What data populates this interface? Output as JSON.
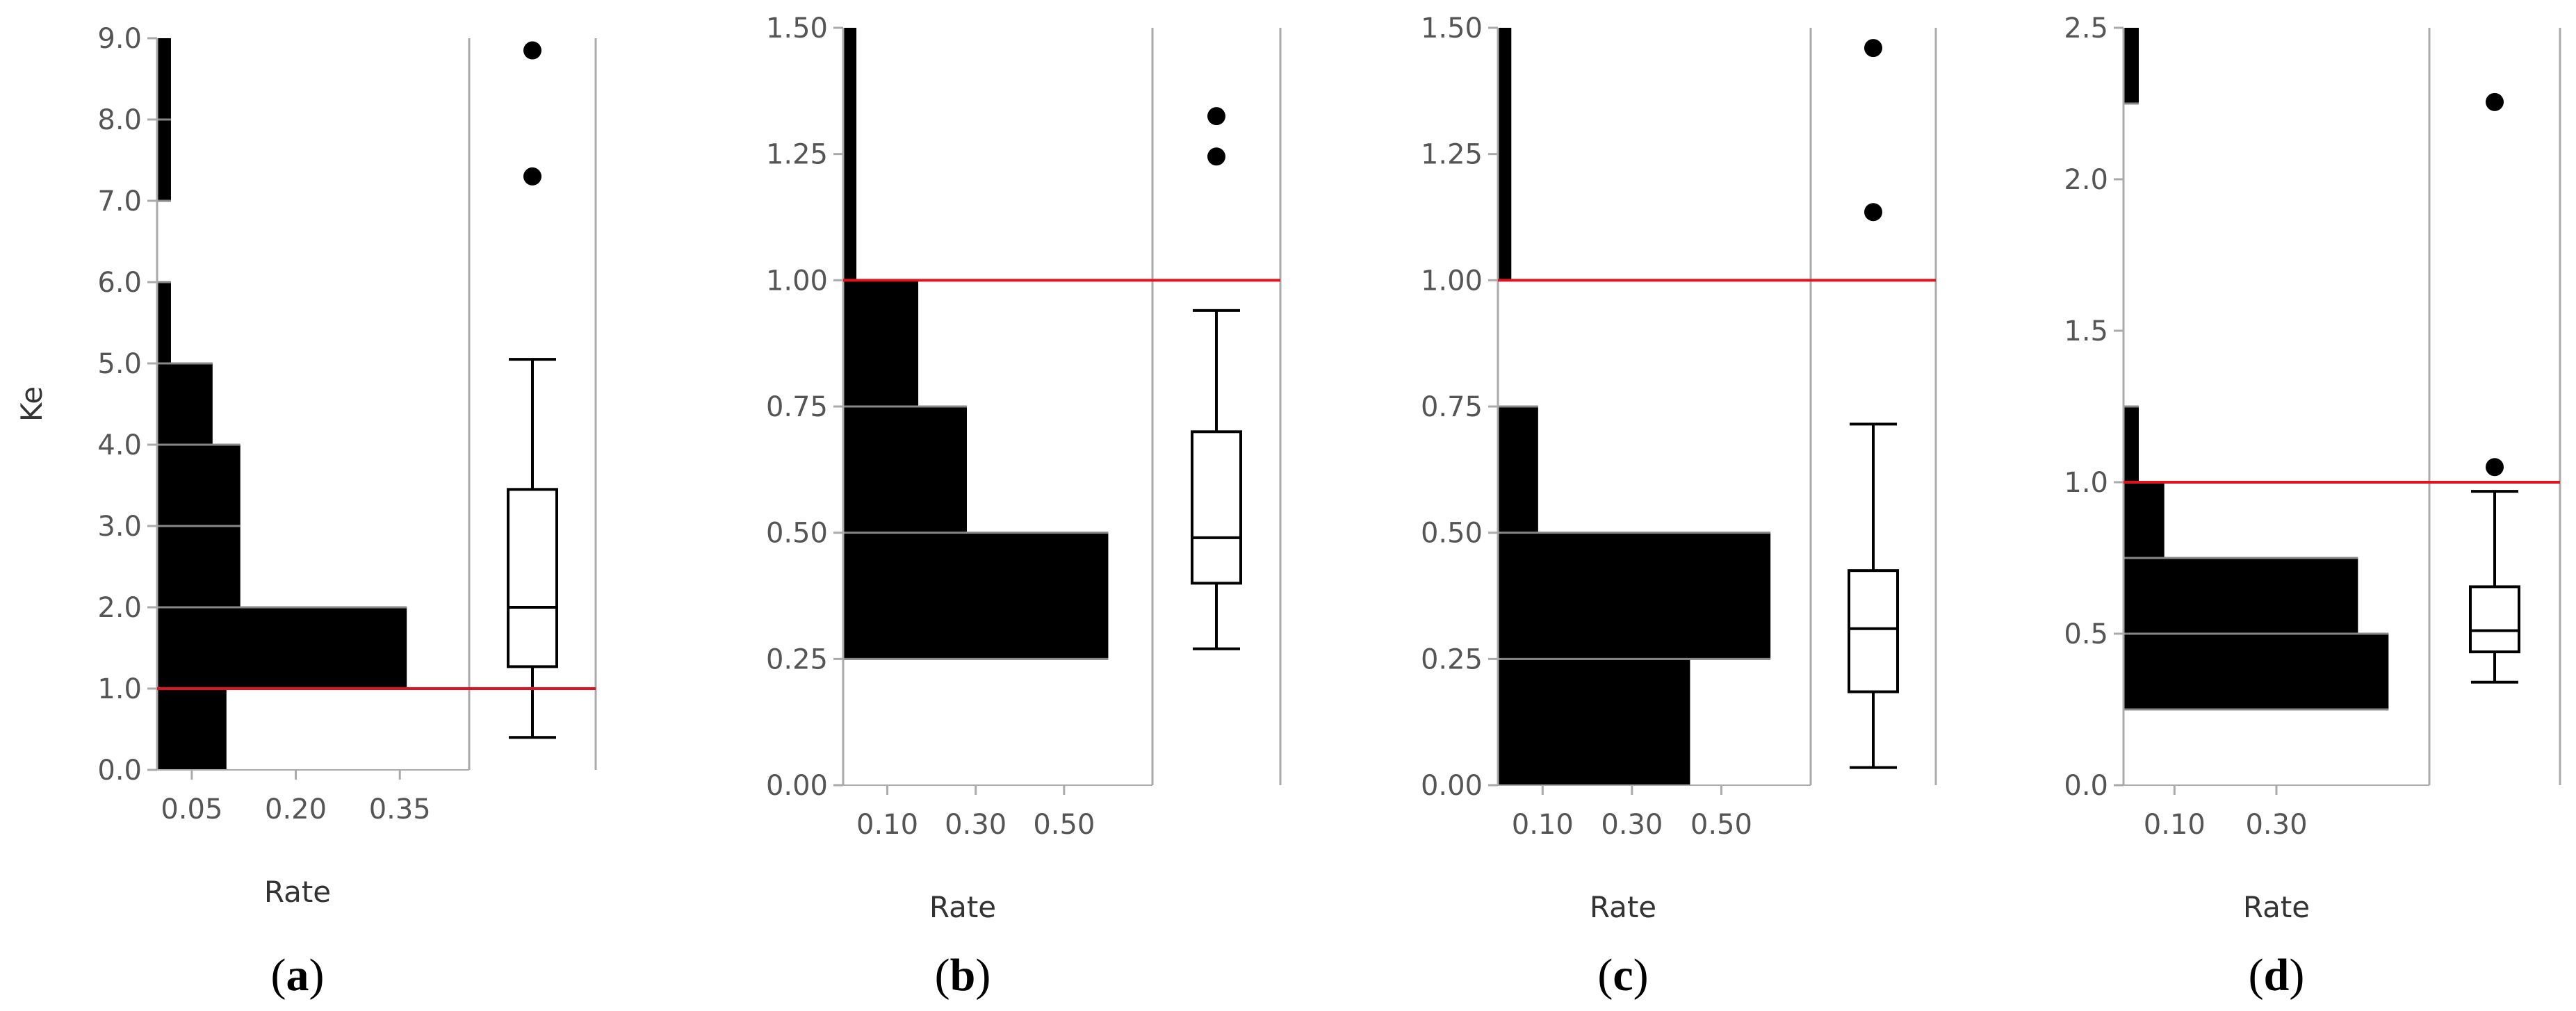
{
  "chart_data": [
    {
      "type": "histogram",
      "panel_label": "a",
      "ylabel": "Ke",
      "xlabel": "Rate",
      "ylim": [
        0,
        9
      ],
      "y_ticks": [
        "0.0",
        "1.0",
        "2.0",
        "3.0",
        "4.0",
        "5.0",
        "6.0",
        "7.0",
        "8.0",
        "9.0"
      ],
      "x_tick_labels": [
        "0.05",
        "0.20",
        "0.35"
      ],
      "rate_max": 0.45,
      "x_tick_values": [
        0.05,
        0.2,
        0.35
      ],
      "reference_line": 1.0,
      "bins": [
        {
          "y0": 0,
          "y1": 1,
          "rate": 0.1
        },
        {
          "y0": 1,
          "y1": 2,
          "rate": 0.36
        },
        {
          "y0": 2,
          "y1": 3,
          "rate": 0.12
        },
        {
          "y0": 3,
          "y1": 4,
          "rate": 0.12
        },
        {
          "y0": 4,
          "y1": 5,
          "rate": 0.08
        },
        {
          "y0": 5,
          "y1": 6,
          "rate": 0.02
        },
        {
          "y0": 6,
          "y1": 7,
          "rate": 0.0
        },
        {
          "y0": 7,
          "y1": 8,
          "rate": 0.02
        },
        {
          "y0": 8,
          "y1": 9,
          "rate": 0.02
        }
      ],
      "boxplot": {
        "whisker_low": 0.4,
        "q1": 1.27,
        "median": 2.0,
        "q3": 3.45,
        "whisker_high": 5.05,
        "outliers": [
          7.3,
          8.85
        ]
      }
    },
    {
      "type": "histogram",
      "panel_label": "b",
      "xlabel": "Rate",
      "ylim": [
        0,
        1.5
      ],
      "y_ticks": [
        "0.00",
        "0.25",
        "0.50",
        "0.75",
        "1.00",
        "1.25",
        "1.50"
      ],
      "x_tick_labels": [
        "0.10",
        "0.30",
        "0.50"
      ],
      "rate_max": 0.7,
      "x_tick_values": [
        0.1,
        0.3,
        0.5
      ],
      "reference_line": 1.0,
      "bins": [
        {
          "y0": 0.25,
          "y1": 0.5,
          "rate": 0.6
        },
        {
          "y0": 0.5,
          "y1": 0.75,
          "rate": 0.28
        },
        {
          "y0": 0.75,
          "y1": 1.0,
          "rate": 0.17
        },
        {
          "y0": 1.0,
          "y1": 1.5,
          "rate": 0.03
        }
      ],
      "boxplot": {
        "whisker_low": 0.27,
        "q1": 0.4,
        "median": 0.49,
        "q3": 0.7,
        "whisker_high": 0.94,
        "outliers": [
          1.245,
          1.325
        ]
      }
    },
    {
      "type": "histogram",
      "panel_label": "c",
      "xlabel": "Rate",
      "ylim": [
        0,
        1.5
      ],
      "y_ticks": [
        "0.00",
        "0.25",
        "0.50",
        "0.75",
        "1.00",
        "1.25",
        "1.50"
      ],
      "x_tick_labels": [
        "0.10",
        "0.30",
        "0.50"
      ],
      "rate_max": 0.7,
      "x_tick_values": [
        0.1,
        0.3,
        0.5
      ],
      "reference_line": 1.0,
      "bins": [
        {
          "y0": 0.0,
          "y1": 0.25,
          "rate": 0.43
        },
        {
          "y0": 0.25,
          "y1": 0.5,
          "rate": 0.61
        },
        {
          "y0": 0.5,
          "y1": 0.75,
          "rate": 0.09
        },
        {
          "y0": 0.75,
          "y1": 1.0,
          "rate": 0.0
        },
        {
          "y0": 1.0,
          "y1": 1.5,
          "rate": 0.03
        }
      ],
      "boxplot": {
        "whisker_low": 0.035,
        "q1": 0.185,
        "median": 0.31,
        "q3": 0.425,
        "whisker_high": 0.715,
        "outliers": [
          1.135,
          1.46
        ]
      }
    },
    {
      "type": "histogram",
      "panel_label": "d",
      "xlabel": "Rate",
      "ylim": [
        0,
        2.5
      ],
      "y_ticks": [
        "0.0",
        "0.5",
        "1.0",
        "1.5",
        "2.0",
        "2.5"
      ],
      "x_tick_labels": [
        "0.10",
        "0.30"
      ],
      "rate_max": 0.6,
      "x_tick_values": [
        0.1,
        0.3
      ],
      "reference_line": 1.0,
      "bins": [
        {
          "y0": 0.25,
          "y1": 0.5,
          "rate": 0.52
        },
        {
          "y0": 0.5,
          "y1": 0.75,
          "rate": 0.46
        },
        {
          "y0": 0.75,
          "y1": 1.0,
          "rate": 0.08
        },
        {
          "y0": 1.0,
          "y1": 1.25,
          "rate": 0.03
        },
        {
          "y0": 2.25,
          "y1": 2.5,
          "rate": 0.03
        }
      ],
      "boxplot": {
        "whisker_low": 0.34,
        "q1": 0.44,
        "median": 0.51,
        "q3": 0.655,
        "whisker_high": 0.97,
        "outliers": [
          1.05,
          2.255
        ]
      }
    }
  ],
  "colors": {
    "bar": "#000000",
    "reference_line": "#e0141e",
    "frame": "#aaaaaa",
    "gridline": "#888888",
    "box": "#000000"
  }
}
